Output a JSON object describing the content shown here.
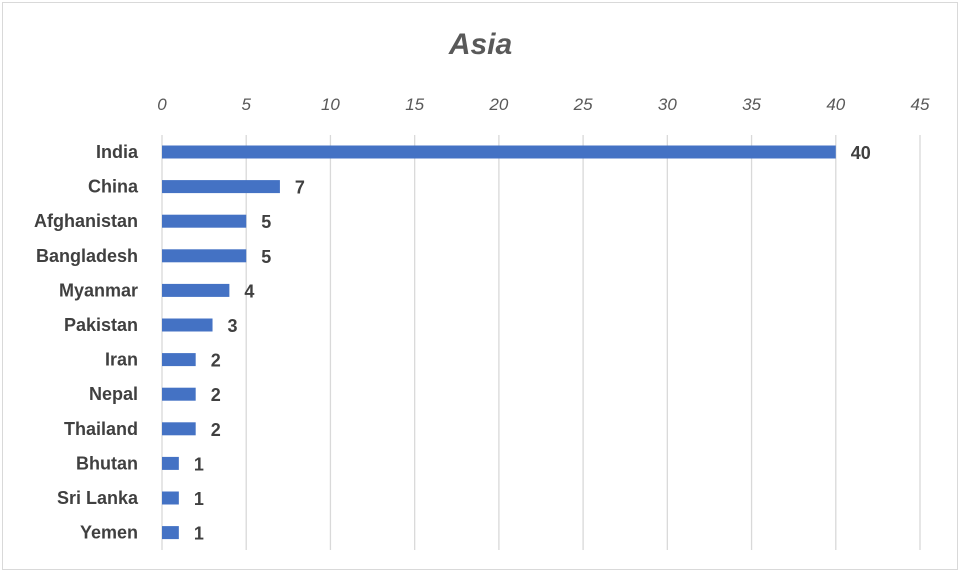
{
  "chart_data": {
    "type": "bar",
    "orientation": "horizontal",
    "title": "Asia",
    "categories": [
      "India",
      "China",
      "Afghanistan",
      "Bangladesh",
      "Myanmar",
      "Pakistan",
      "Iran",
      "Nepal",
      "Thailand",
      "Bhutan",
      "Sri Lanka",
      "Yemen"
    ],
    "values": [
      40,
      7,
      5,
      5,
      4,
      3,
      2,
      2,
      2,
      1,
      1,
      1
    ],
    "xlim": [
      0,
      45
    ],
    "xticks": [
      0,
      5,
      10,
      15,
      20,
      25,
      30,
      35,
      40,
      45
    ],
    "axis_position": "top",
    "grid": true,
    "data_labels": true,
    "bar_color": "#4472C4",
    "grid_color": "#d9d9d9"
  }
}
